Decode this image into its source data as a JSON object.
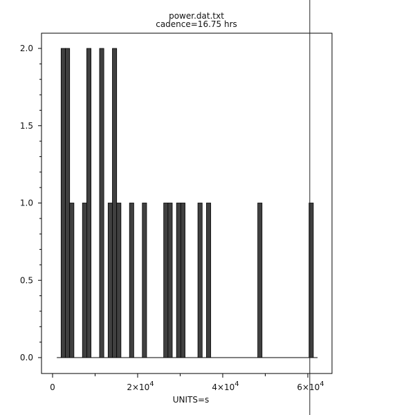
{
  "chart_data": {
    "type": "bar",
    "title": "power.dat.txt",
    "subtitle": "cadence=16.75 hrs",
    "xlabel": "UNITS=s",
    "ylabel": "",
    "xlim": [
      -2500,
      66000
    ],
    "ylim": [
      -0.1,
      2.1
    ],
    "x_range": [
      1000,
      62300
    ],
    "bin_width": 1005,
    "xticks": [
      {
        "value": 0,
        "label": "0",
        "exp": ""
      },
      {
        "value": 20000,
        "label": "2×10",
        "exp": "4"
      },
      {
        "value": 40000,
        "label": "4×10",
        "exp": "4"
      },
      {
        "value": 60000,
        "label": "6×10",
        "exp": "4"
      }
    ],
    "xminor": [
      10000,
      30000,
      50000
    ],
    "yticks": [
      {
        "value": 0,
        "label": "0.0"
      },
      {
        "value": 0.5,
        "label": "0.5"
      },
      {
        "value": 1,
        "label": "1.0"
      },
      {
        "value": 1.5,
        "label": "1.5"
      },
      {
        "value": 2,
        "label": "2.0"
      }
    ],
    "yminor_step": 0.1,
    "bins": [
      {
        "x0": 2005,
        "count": 2
      },
      {
        "x0": 3010,
        "count": 2
      },
      {
        "x0": 4015,
        "count": 1
      },
      {
        "x0": 7030,
        "count": 1
      },
      {
        "x0": 8035,
        "count": 2
      },
      {
        "x0": 11050,
        "count": 2
      },
      {
        "x0": 13060,
        "count": 1
      },
      {
        "x0": 14065,
        "count": 2
      },
      {
        "x0": 15070,
        "count": 1
      },
      {
        "x0": 18085,
        "count": 1
      },
      {
        "x0": 21100,
        "count": 1
      },
      {
        "x0": 26125,
        "count": 1
      },
      {
        "x0": 27130,
        "count": 1
      },
      {
        "x0": 29140,
        "count": 1
      },
      {
        "x0": 30145,
        "count": 1
      },
      {
        "x0": 34165,
        "count": 1
      },
      {
        "x0": 36175,
        "count": 1
      },
      {
        "x0": 48235,
        "count": 1
      },
      {
        "x0": 60295,
        "count": 1
      }
    ],
    "marker_line_x": 60300,
    "grid": false,
    "colors": {
      "bar": "#404040",
      "edge": "#000000"
    }
  }
}
